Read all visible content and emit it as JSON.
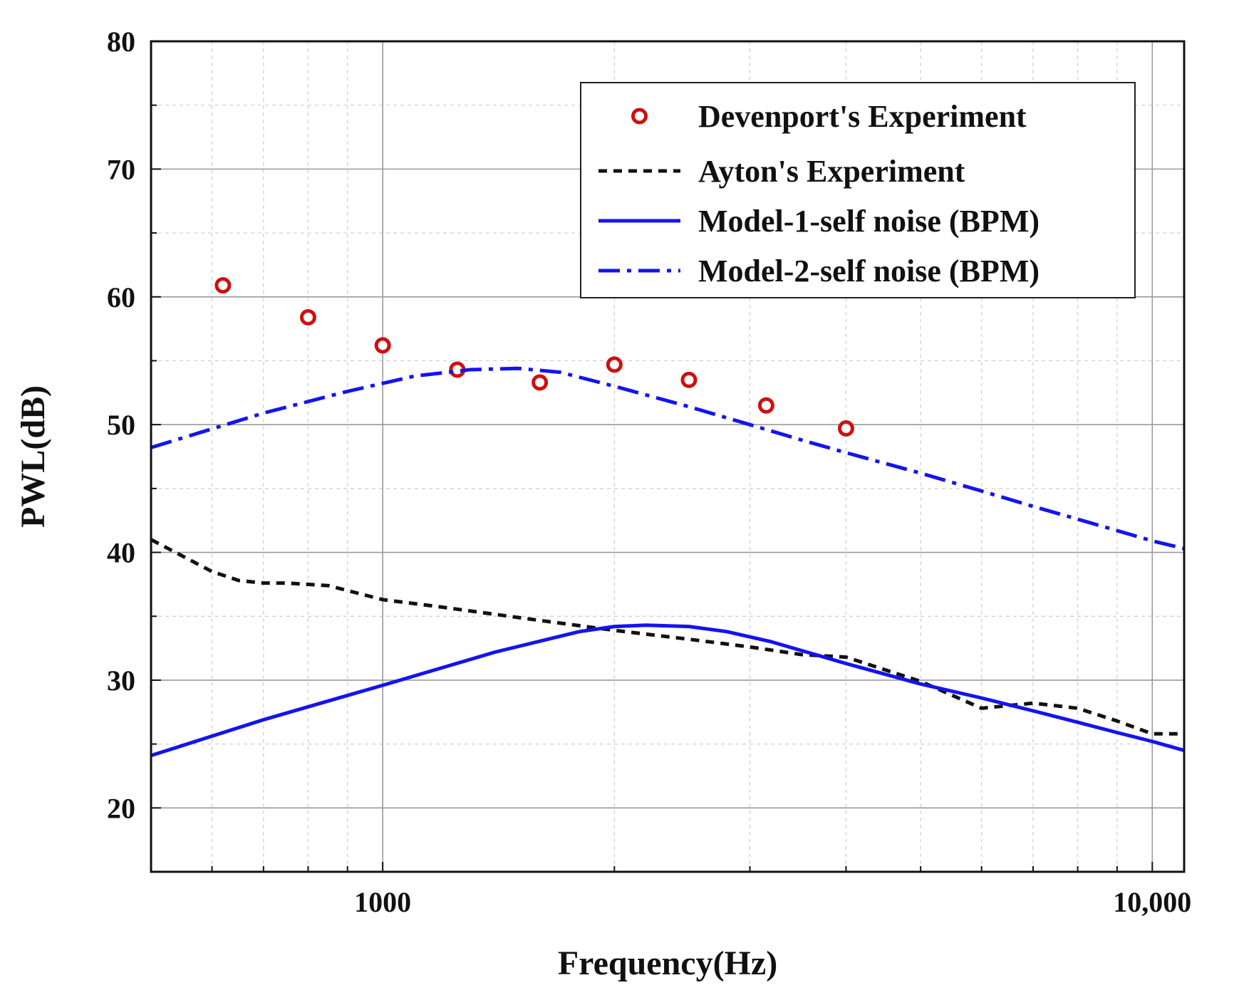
{
  "chart_data": {
    "type": "line",
    "title": "",
    "xlabel": "Frequency(Hz)",
    "ylabel": "PWL(dB)",
    "xscale": "log",
    "xlim": [
      500,
      11000
    ],
    "ylim": [
      15,
      80
    ],
    "grid": true,
    "legend_position": "top-right",
    "x_ticks": [
      {
        "value": 1000,
        "label": "1000"
      },
      {
        "value": 10000,
        "label": "10,000"
      }
    ],
    "y_ticks": [
      {
        "value": 20,
        "label": "20"
      },
      {
        "value": 30,
        "label": "30"
      },
      {
        "value": 40,
        "label": "40"
      },
      {
        "value": 50,
        "label": "50"
      },
      {
        "value": 60,
        "label": "60"
      },
      {
        "value": 70,
        "label": "70"
      },
      {
        "value": 80,
        "label": "80"
      }
    ],
    "series": [
      {
        "name": "Devenport's Experiment",
        "style": "circles",
        "color": "#cc1111",
        "x": [
          620,
          800,
          1000,
          1250,
          1600,
          2000,
          2500,
          3150,
          4000
        ],
        "y": [
          60.9,
          58.4,
          56.2,
          54.3,
          53.3,
          54.7,
          53.5,
          51.5,
          49.7
        ]
      },
      {
        "name": "Ayton's Experiment",
        "style": "dashed",
        "color": "#111111",
        "x": [
          500,
          600,
          650,
          700,
          750,
          850,
          1000,
          1200,
          1500,
          2000,
          2500,
          3000,
          3500,
          4000,
          5000,
          6000,
          7000,
          8000,
          9000,
          10000,
          11000
        ],
        "y": [
          41.0,
          38.5,
          37.8,
          37.6,
          37.6,
          37.4,
          36.3,
          35.7,
          34.9,
          33.9,
          33.2,
          32.6,
          32.0,
          31.8,
          29.9,
          27.8,
          28.2,
          27.8,
          26.8,
          25.8,
          25.8
        ]
      },
      {
        "name": "Model-1-self noise (BPM)",
        "style": "solid",
        "color": "#1414ee",
        "x": [
          500,
          700,
          1000,
          1400,
          1800,
          2000,
          2200,
          2500,
          2800,
          3200,
          4000,
          5000,
          6000,
          7000,
          8000,
          9000,
          10000,
          11000
        ],
        "y": [
          24.1,
          26.9,
          29.6,
          32.2,
          33.8,
          34.2,
          34.3,
          34.2,
          33.8,
          33.0,
          31.3,
          29.7,
          28.6,
          27.6,
          26.7,
          25.9,
          25.2,
          24.5
        ]
      },
      {
        "name": "Model-2-self noise (BPM)",
        "style": "dashdot",
        "color": "#1414ee",
        "x": [
          500,
          700,
          900,
          1100,
          1300,
          1500,
          1700,
          2000,
          2500,
          3000,
          3500,
          4000,
          5000,
          6000,
          7000,
          8000,
          9000,
          10000,
          11000
        ],
        "y": [
          48.2,
          50.9,
          52.6,
          53.8,
          54.3,
          54.4,
          54.1,
          53.0,
          51.4,
          50.0,
          48.8,
          47.8,
          46.2,
          44.8,
          43.6,
          42.6,
          41.7,
          40.9,
          40.3
        ]
      }
    ]
  }
}
